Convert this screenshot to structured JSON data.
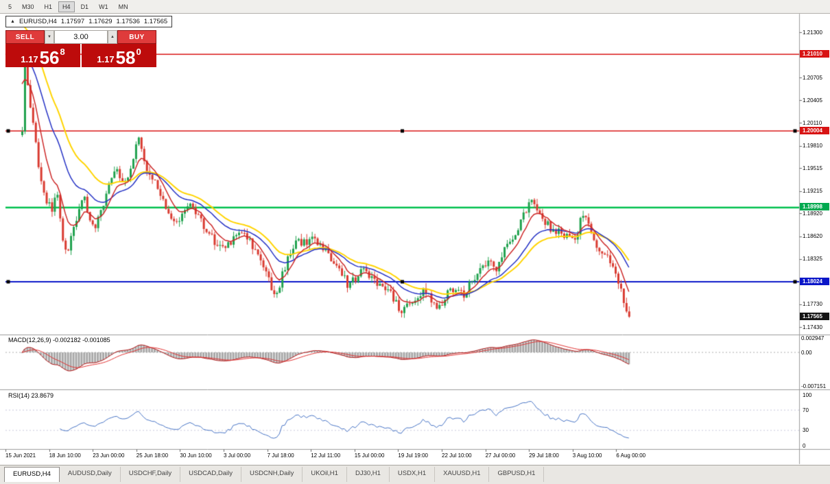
{
  "toolbar": {
    "timeframes": [
      "5",
      "M30",
      "H1",
      "H4",
      "D1",
      "W1",
      "MN"
    ],
    "active": "H4"
  },
  "chart_header": {
    "collapse_icon": "▲",
    "symbol_period": "EURUSD,H4",
    "open": "1.17597",
    "high": "1.17629",
    "low": "1.17536",
    "close": "1.17565"
  },
  "trade_panel": {
    "sell_label": "SELL",
    "buy_label": "BUY",
    "volume": "3.00",
    "spin_down": "▼",
    "spin_up": "▲",
    "sell_price": {
      "whole": "1.17",
      "pips": "56",
      "frac": "8"
    },
    "buy_price": {
      "whole": "1.17",
      "pips": "58",
      "frac": "0"
    },
    "button_color": "#df3b3b",
    "panel_color": "#bd0b0b"
  },
  "price_axis": {
    "plain": [
      "1.21300",
      "1.20705",
      "1.20405",
      "1.20110",
      "1.19810",
      "1.19515",
      "1.19215",
      "1.18920",
      "1.18620",
      "1.18325",
      "1.17730",
      "1.17430"
    ],
    "badges": [
      {
        "text": "1.21010",
        "color": "#d81414"
      },
      {
        "text": "1.20004",
        "color": "#d81414"
      },
      {
        "text": "1.18998",
        "color": "#00a94f"
      },
      {
        "text": "1.18024",
        "color": "#0a16c8"
      },
      {
        "text": "1.17565",
        "color": "#141414"
      }
    ]
  },
  "hlines": [
    {
      "price": 1.2101,
      "color": "#d81414",
      "width": 1.4,
      "markers": false
    },
    {
      "price": 1.20004,
      "color": "#d81414",
      "width": 1.4,
      "markers": true
    },
    {
      "price": 1.18998,
      "color": "#00c04e",
      "width": 2.5,
      "markers": false
    },
    {
      "price": 1.18024,
      "color": "#0a16c8",
      "width": 2.2,
      "markers": true
    }
  ],
  "chart_data": {
    "type": "candlestick",
    "symbol": "EURUSD",
    "timeframe": "H4",
    "last_close": 1.17565,
    "num_candles": 225,
    "visible_price_range": [
      1.1734,
      1.21525
    ],
    "noise": {
      "close": 0.0011,
      "wick": 0.0007
    },
    "colors": {
      "up": "#1fa14d",
      "down": "#d93a30"
    },
    "mas": [
      {
        "period": 30,
        "seed": 1.215,
        "color": "#ffd400",
        "width": 2
      },
      {
        "period": 21,
        "seed": 1.211,
        "color": "#2431c4",
        "width": 1.5
      },
      {
        "period": 8,
        "seed": 1.208,
        "color": "#cc2727",
        "width": 1.5
      }
    ],
    "price_path": [
      [
        0,
        1.1995
      ],
      [
        1,
        1.2085
      ],
      [
        3,
        1.2035
      ],
      [
        5,
        1.1982
      ],
      [
        7,
        1.193
      ],
      [
        9,
        1.1909
      ],
      [
        11,
        1.1896
      ],
      [
        13,
        1.1921
      ],
      [
        15,
        1.1852
      ],
      [
        17,
        1.1844
      ],
      [
        19,
        1.1878
      ],
      [
        21,
        1.1896
      ],
      [
        23,
        1.1916
      ],
      [
        25,
        1.1882
      ],
      [
        27,
        1.1872
      ],
      [
        29,
        1.1896
      ],
      [
        31,
        1.1918
      ],
      [
        33,
        1.1934
      ],
      [
        35,
        1.195
      ],
      [
        37,
        1.193
      ],
      [
        39,
        1.1944
      ],
      [
        41,
        1.1968
      ],
      [
        43,
        1.199
      ],
      [
        45,
        1.1962
      ],
      [
        47,
        1.194
      ],
      [
        50,
        1.1926
      ],
      [
        53,
        1.19
      ],
      [
        56,
        1.1882
      ],
      [
        59,
        1.189
      ],
      [
        62,
        1.19
      ],
      [
        65,
        1.1886
      ],
      [
        68,
        1.187
      ],
      [
        71,
        1.1856
      ],
      [
        74,
        1.1846
      ],
      [
        77,
        1.1856
      ],
      [
        80,
        1.187
      ],
      [
        83,
        1.186
      ],
      [
        86,
        1.1841
      ],
      [
        89,
        1.182
      ],
      [
        92,
        1.1796
      ],
      [
        94,
        1.1786
      ],
      [
        96,
        1.1812
      ],
      [
        99,
        1.184
      ],
      [
        102,
        1.1858
      ],
      [
        105,
        1.185
      ],
      [
        108,
        1.1861
      ],
      [
        111,
        1.1846
      ],
      [
        114,
        1.1831
      ],
      [
        117,
        1.182
      ],
      [
        120,
        1.1799
      ],
      [
        123,
        1.1806
      ],
      [
        126,
        1.1818
      ],
      [
        129,
        1.1808
      ],
      [
        132,
        1.1798
      ],
      [
        135,
        1.1792
      ],
      [
        138,
        1.1773
      ],
      [
        140,
        1.1759
      ],
      [
        142,
        1.177
      ],
      [
        145,
        1.1781
      ],
      [
        148,
        1.1789
      ],
      [
        151,
        1.1779
      ],
      [
        154,
        1.1769
      ],
      [
        157,
        1.1789
      ],
      [
        160,
        1.1796
      ],
      [
        163,
        1.1786
      ],
      [
        166,
        1.1806
      ],
      [
        169,
        1.1818
      ],
      [
        172,
        1.1828
      ],
      [
        175,
        1.1821
      ],
      [
        178,
        1.1846
      ],
      [
        181,
        1.1862
      ],
      [
        184,
        1.1881
      ],
      [
        187,
        1.1902
      ],
      [
        189,
        1.1908
      ],
      [
        192,
        1.1886
      ],
      [
        195,
        1.1873
      ],
      [
        198,
        1.1869
      ],
      [
        201,
        1.1861
      ],
      [
        204,
        1.1853
      ],
      [
        206,
        1.1886
      ],
      [
        208,
        1.1891
      ],
      [
        211,
        1.1856
      ],
      [
        214,
        1.1841
      ],
      [
        217,
        1.1829
      ],
      [
        219,
        1.1811
      ],
      [
        221,
        1.1789
      ],
      [
        223,
        1.1763
      ],
      [
        224,
        1.17565
      ]
    ]
  },
  "macd": {
    "label": "MACD(12,26,9)",
    "values_text": "-0.002182 -0.001085",
    "fast": 12,
    "slow": 26,
    "signal": 9,
    "scale_max": 0.0036,
    "scale_min": -0.0076,
    "axis": [
      {
        "text": "0.002947",
        "v": 0.002947
      },
      {
        "text": "0.00",
        "v": 0
      },
      {
        "text": "-0.007151",
        "v": -0.007151
      }
    ],
    "colors": {
      "hist": "#a8a8a8",
      "main": "#b01010",
      "signal": "#e03030"
    }
  },
  "rsi": {
    "label": "RSI(14)",
    "value_text": "23.8679",
    "period": 14,
    "axis": [
      {
        "text": "100",
        "v": 100
      },
      {
        "text": "70",
        "v": 70
      },
      {
        "text": "30",
        "v": 30
      },
      {
        "text": "0",
        "v": 0
      }
    ],
    "levels": [
      70,
      30
    ],
    "color": "#4572c4",
    "level_color": "#c6c6da"
  },
  "time_axis": {
    "labels": [
      "15 Jun 2021",
      "18 Jun 10:00",
      "23 Jun 00:00",
      "25 Jun 18:00",
      "30 Jun 10:00",
      "3 Jul 00:00",
      "7 Jul 18:00",
      "12 Jul 11:00",
      "15 Jul 00:00",
      "19 Jul 19:00",
      "22 Jul 10:00",
      "27 Jul 00:00",
      "29 Jul 18:00",
      "3 Aug 10:00",
      "6 Aug 00:00"
    ]
  },
  "tabs": {
    "labels": [
      "EURUSD,H4",
      "AUDUSD,Daily",
      "USDCHF,Daily",
      "USDCAD,Daily",
      "USDCNH,Daily",
      "UKOil,H1",
      "DJ30,H1",
      "USDX,H1",
      "XAUUSD,H1",
      "GBPUSD,H1"
    ],
    "active_index": 0
  }
}
